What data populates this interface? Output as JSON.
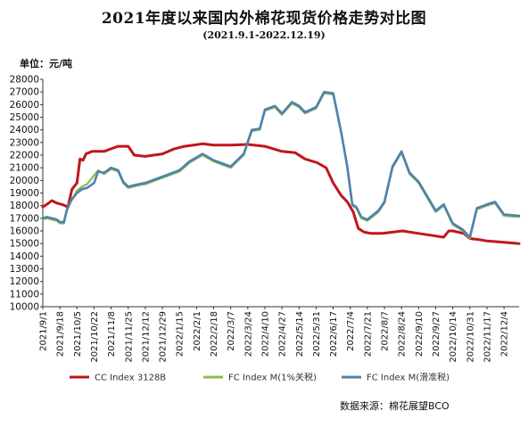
{
  "title": "2021年度以来国内外棉花现货价格走势对比图",
  "subtitle": "(2021.9.1-2022.12.19)",
  "unit": "单位：元/吨",
  "source": "数据来源：棉花展望BCO",
  "chart_data": {
    "type": "line",
    "ylim": [
      10000,
      28000
    ],
    "yticks": [
      10000,
      11000,
      12000,
      13000,
      14000,
      15000,
      16000,
      17000,
      18000,
      19000,
      20000,
      21000,
      22000,
      23000,
      24000,
      25000,
      26000,
      27000,
      28000
    ],
    "x_range": [
      "2021-09-01",
      "2022-12-19"
    ],
    "xtick_labels": [
      "2021/9/1",
      "2021/9/18",
      "2021/10/5",
      "2021/10/22",
      "2021/11/8",
      "2021/11/25",
      "2021/12/12",
      "2021/12/29",
      "2022/1/15",
      "2022/2/1",
      "2022/2/18",
      "2022/3/7",
      "2022/3/24",
      "2022/4/10",
      "2022/4/27",
      "2022/5/14",
      "2022/5/31",
      "2022/6/17",
      "2022/7/4",
      "2022/7/21",
      "2022/8/7",
      "2022/8/24",
      "2022/9/10",
      "2022/9/27",
      "2022/10/14",
      "2022/10/31",
      "2022/11/17",
      "2022/12/4"
    ],
    "grid": false,
    "legend_position": "bottom",
    "series": [
      {
        "name": "CC Index 3128B",
        "color": "#c0161c",
        "points": [
          [
            "2021-09-01",
            17900
          ],
          [
            "2021-09-06",
            18150
          ],
          [
            "2021-09-10",
            18400
          ],
          [
            "2021-09-15",
            18200
          ],
          [
            "2021-09-20",
            18100
          ],
          [
            "2021-09-26",
            17900
          ],
          [
            "2021-09-30",
            19300
          ],
          [
            "2021-10-05",
            19800
          ],
          [
            "2021-10-08",
            21700
          ],
          [
            "2021-10-11",
            21600
          ],
          [
            "2021-10-14",
            22100
          ],
          [
            "2021-10-20",
            22300
          ],
          [
            "2021-11-01",
            22300
          ],
          [
            "2021-11-08",
            22500
          ],
          [
            "2021-11-15",
            22700
          ],
          [
            "2021-11-25",
            22700
          ],
          [
            "2021-12-01",
            22000
          ],
          [
            "2021-12-12",
            21900
          ],
          [
            "2021-12-29",
            22100
          ],
          [
            "2022-01-10",
            22500
          ],
          [
            "2022-01-20",
            22700
          ],
          [
            "2022-01-25",
            22750
          ],
          [
            "2022-02-07",
            22900
          ],
          [
            "2022-02-18",
            22800
          ],
          [
            "2022-03-07",
            22800
          ],
          [
            "2022-03-24",
            22850
          ],
          [
            "2022-04-10",
            22700
          ],
          [
            "2022-04-27",
            22300
          ],
          [
            "2022-05-10",
            22200
          ],
          [
            "2022-05-20",
            21700
          ],
          [
            "2022-06-01",
            21400
          ],
          [
            "2022-06-10",
            21000
          ],
          [
            "2022-06-17",
            19800
          ],
          [
            "2022-06-25",
            18800
          ],
          [
            "2022-07-01",
            18300
          ],
          [
            "2022-07-07",
            17500
          ],
          [
            "2022-07-12",
            16200
          ],
          [
            "2022-07-18",
            15900
          ],
          [
            "2022-07-25",
            15800
          ],
          [
            "2022-08-05",
            15800
          ],
          [
            "2022-08-15",
            15900
          ],
          [
            "2022-08-25",
            16000
          ],
          [
            "2022-09-10",
            15800
          ],
          [
            "2022-09-27",
            15600
          ],
          [
            "2022-10-05",
            15500
          ],
          [
            "2022-10-10",
            16000
          ],
          [
            "2022-10-14",
            16000
          ],
          [
            "2022-10-25",
            15800
          ],
          [
            "2022-10-31",
            15400
          ],
          [
            "2022-11-10",
            15300
          ],
          [
            "2022-11-17",
            15200
          ],
          [
            "2022-12-04",
            15100
          ],
          [
            "2022-12-19",
            15000
          ]
        ]
      },
      {
        "name": "FC Index M(1%关税)",
        "color": "#8bbd4a",
        "points": [
          [
            "2021-09-01",
            16900
          ],
          [
            "2021-09-05",
            17000
          ],
          [
            "2021-09-10",
            16900
          ],
          [
            "2021-09-15",
            16800
          ],
          [
            "2021-09-18",
            16600
          ],
          [
            "2021-09-22",
            16600
          ],
          [
            "2021-09-25",
            17600
          ],
          [
            "2021-09-29",
            18300
          ],
          [
            "2021-10-05",
            19200
          ],
          [
            "2021-10-10",
            19500
          ],
          [
            "2021-10-15",
            19700
          ],
          [
            "2021-10-22",
            20400
          ],
          [
            "2021-10-26",
            20800
          ],
          [
            "2021-11-01",
            20500
          ],
          [
            "2021-11-08",
            20900
          ],
          [
            "2021-11-15",
            20700
          ],
          [
            "2021-11-20",
            19800
          ],
          [
            "2021-11-25",
            19400
          ],
          [
            "2021-12-05",
            19600
          ],
          [
            "2021-12-12",
            19700
          ],
          [
            "2021-12-29",
            20200
          ],
          [
            "2022-01-15",
            20700
          ],
          [
            "2022-01-25",
            21400
          ],
          [
            "2022-02-07",
            22000
          ],
          [
            "2022-02-18",
            21500
          ],
          [
            "2022-03-07",
            21000
          ],
          [
            "2022-03-20",
            22000
          ],
          [
            "2022-03-28",
            23900
          ],
          [
            "2022-04-05",
            24000
          ],
          [
            "2022-04-10",
            25500
          ],
          [
            "2022-04-20",
            25800
          ],
          [
            "2022-04-27",
            25200
          ],
          [
            "2022-05-07",
            26100
          ],
          [
            "2022-05-14",
            25800
          ],
          [
            "2022-05-20",
            25300
          ],
          [
            "2022-05-31",
            25700
          ],
          [
            "2022-06-08",
            26900
          ],
          [
            "2022-06-17",
            26800
          ],
          [
            "2022-06-25",
            23700
          ],
          [
            "2022-07-01",
            21000
          ],
          [
            "2022-07-06",
            18000
          ],
          [
            "2022-07-10",
            17800
          ],
          [
            "2022-07-15",
            17000
          ],
          [
            "2022-07-21",
            16800
          ],
          [
            "2022-08-01",
            17500
          ],
          [
            "2022-08-07",
            18200
          ],
          [
            "2022-08-15",
            21000
          ],
          [
            "2022-08-24",
            22200
          ],
          [
            "2022-09-01",
            20500
          ],
          [
            "2022-09-10",
            19800
          ],
          [
            "2022-09-27",
            17500
          ],
          [
            "2022-10-05",
            18000
          ],
          [
            "2022-10-14",
            16500
          ],
          [
            "2022-10-24",
            16000
          ],
          [
            "2022-10-31",
            15400
          ],
          [
            "2022-11-07",
            17700
          ],
          [
            "2022-11-17",
            18000
          ],
          [
            "2022-11-25",
            18200
          ],
          [
            "2022-12-04",
            17200
          ],
          [
            "2022-12-19",
            17100
          ]
        ]
      },
      {
        "name": "FC Index M(滑准税)",
        "color": "#4f81b0",
        "points": [
          [
            "2021-09-01",
            17000
          ],
          [
            "2021-09-05",
            17100
          ],
          [
            "2021-09-10",
            17000
          ],
          [
            "2021-09-15",
            16900
          ],
          [
            "2021-09-18",
            16700
          ],
          [
            "2021-09-22",
            16700
          ],
          [
            "2021-09-25",
            17700
          ],
          [
            "2021-09-29",
            18400
          ],
          [
            "2021-10-05",
            19000
          ],
          [
            "2021-10-10",
            19300
          ],
          [
            "2021-10-15",
            19400
          ],
          [
            "2021-10-22",
            19800
          ],
          [
            "2021-10-26",
            20700
          ],
          [
            "2021-11-01",
            20600
          ],
          [
            "2021-11-08",
            21000
          ],
          [
            "2021-11-15",
            20800
          ],
          [
            "2021-11-20",
            19900
          ],
          [
            "2021-11-25",
            19500
          ],
          [
            "2021-12-05",
            19700
          ],
          [
            "2021-12-12",
            19800
          ],
          [
            "2021-12-29",
            20300
          ],
          [
            "2022-01-15",
            20800
          ],
          [
            "2022-01-25",
            21500
          ],
          [
            "2022-02-07",
            22100
          ],
          [
            "2022-02-18",
            21600
          ],
          [
            "2022-03-07",
            21100
          ],
          [
            "2022-03-20",
            22100
          ],
          [
            "2022-03-28",
            24000
          ],
          [
            "2022-04-05",
            24100
          ],
          [
            "2022-04-10",
            25600
          ],
          [
            "2022-04-20",
            25900
          ],
          [
            "2022-04-27",
            25300
          ],
          [
            "2022-05-07",
            26200
          ],
          [
            "2022-05-14",
            25900
          ],
          [
            "2022-05-20",
            25400
          ],
          [
            "2022-05-31",
            25800
          ],
          [
            "2022-06-08",
            27000
          ],
          [
            "2022-06-17",
            26900
          ],
          [
            "2022-06-25",
            23800
          ],
          [
            "2022-07-01",
            21100
          ],
          [
            "2022-07-06",
            18100
          ],
          [
            "2022-07-10",
            17900
          ],
          [
            "2022-07-15",
            17100
          ],
          [
            "2022-07-21",
            16900
          ],
          [
            "2022-08-01",
            17600
          ],
          [
            "2022-08-07",
            18300
          ],
          [
            "2022-08-15",
            21100
          ],
          [
            "2022-08-24",
            22300
          ],
          [
            "2022-09-01",
            20600
          ],
          [
            "2022-09-10",
            19900
          ],
          [
            "2022-09-27",
            17600
          ],
          [
            "2022-10-05",
            18100
          ],
          [
            "2022-10-14",
            16600
          ],
          [
            "2022-10-24",
            16100
          ],
          [
            "2022-10-31",
            15500
          ],
          [
            "2022-11-07",
            17800
          ],
          [
            "2022-11-17",
            18100
          ],
          [
            "2022-11-25",
            18300
          ],
          [
            "2022-12-04",
            17300
          ],
          [
            "2022-12-19",
            17200
          ]
        ]
      }
    ]
  }
}
